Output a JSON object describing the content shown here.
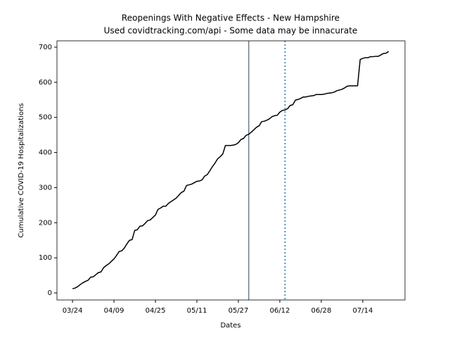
{
  "chart_data": {
    "type": "line",
    "title": "Reopenings With Negative Effects - New Hampshire",
    "subtitle": "Used covidtracking.com/api - Some data may be innacurate",
    "x_label": "Dates",
    "y_label": "Cumulative COVID-19 Hospitalizations",
    "categories": [
      "03/24",
      null,
      null,
      null,
      null,
      null,
      null,
      null,
      null,
      null,
      null,
      null,
      null,
      null,
      null,
      null,
      "04/09",
      null,
      null,
      null,
      null,
      null,
      null,
      null,
      null,
      null,
      null,
      null,
      null,
      null,
      null,
      null,
      "04/25",
      null,
      null,
      null,
      null,
      null,
      null,
      null,
      null,
      null,
      null,
      null,
      null,
      null,
      null,
      null,
      "05/11",
      null,
      null,
      null,
      null,
      null,
      null,
      null,
      null,
      null,
      null,
      null,
      null,
      null,
      null,
      null,
      "05/27",
      null,
      null,
      null,
      null,
      null,
      null,
      null,
      null,
      null,
      null,
      null,
      null,
      null,
      null,
      null,
      "06/12",
      null,
      null,
      null,
      null,
      null,
      null,
      null,
      null,
      null,
      null,
      null,
      null,
      null,
      null,
      null,
      "06/28",
      null,
      null,
      null,
      null,
      null,
      null,
      null,
      null,
      null,
      null,
      null,
      null,
      null,
      null,
      null,
      "07/14",
      null,
      null,
      null,
      null,
      null,
      null,
      null,
      null,
      null,
      null
    ],
    "series": [
      {
        "color": "#000000",
        "values": [
          12,
          14,
          18,
          24,
          29,
          33,
          36,
          45,
          46,
          52,
          58,
          60,
          72,
          78,
          83,
          90,
          97,
          107,
          118,
          120,
          128,
          140,
          150,
          152,
          178,
          180,
          190,
          191,
          198,
          206,
          208,
          215,
          222,
          238,
          242,
          247,
          247,
          255,
          260,
          265,
          270,
          278,
          286,
          290,
          306,
          308,
          310,
          314,
          318,
          319,
          322,
          333,
          337,
          348,
          360,
          370,
          382,
          388,
          396,
          420,
          420,
          420,
          421,
          423,
          428,
          437,
          440,
          449,
          452,
          458,
          465,
          472,
          476,
          488,
          489,
          492,
          496,
          502,
          505,
          506,
          515,
          520,
          521,
          525,
          534,
          536,
          549,
          551,
          554,
          558,
          558,
          560,
          561,
          562,
          565,
          565,
          565,
          566,
          568,
          569,
          570,
          572,
          576,
          578,
          580,
          584,
          589,
          590,
          590,
          590,
          590,
          665,
          668,
          670,
          670,
          673,
          673,
          674,
          674,
          678,
          682,
          683,
          688
        ]
      }
    ],
    "vlines": [
      {
        "x": 68,
        "color": "#708090",
        "style": "solid"
      },
      {
        "x": 82,
        "color": "#1f77b4",
        "style": "dotted"
      }
    ],
    "xlim": [
      -6,
      128.3
    ],
    "ylim": [
      -20,
      718
    ],
    "yticks": [
      0,
      100,
      200,
      300,
      400,
      500,
      600,
      700
    ]
  }
}
